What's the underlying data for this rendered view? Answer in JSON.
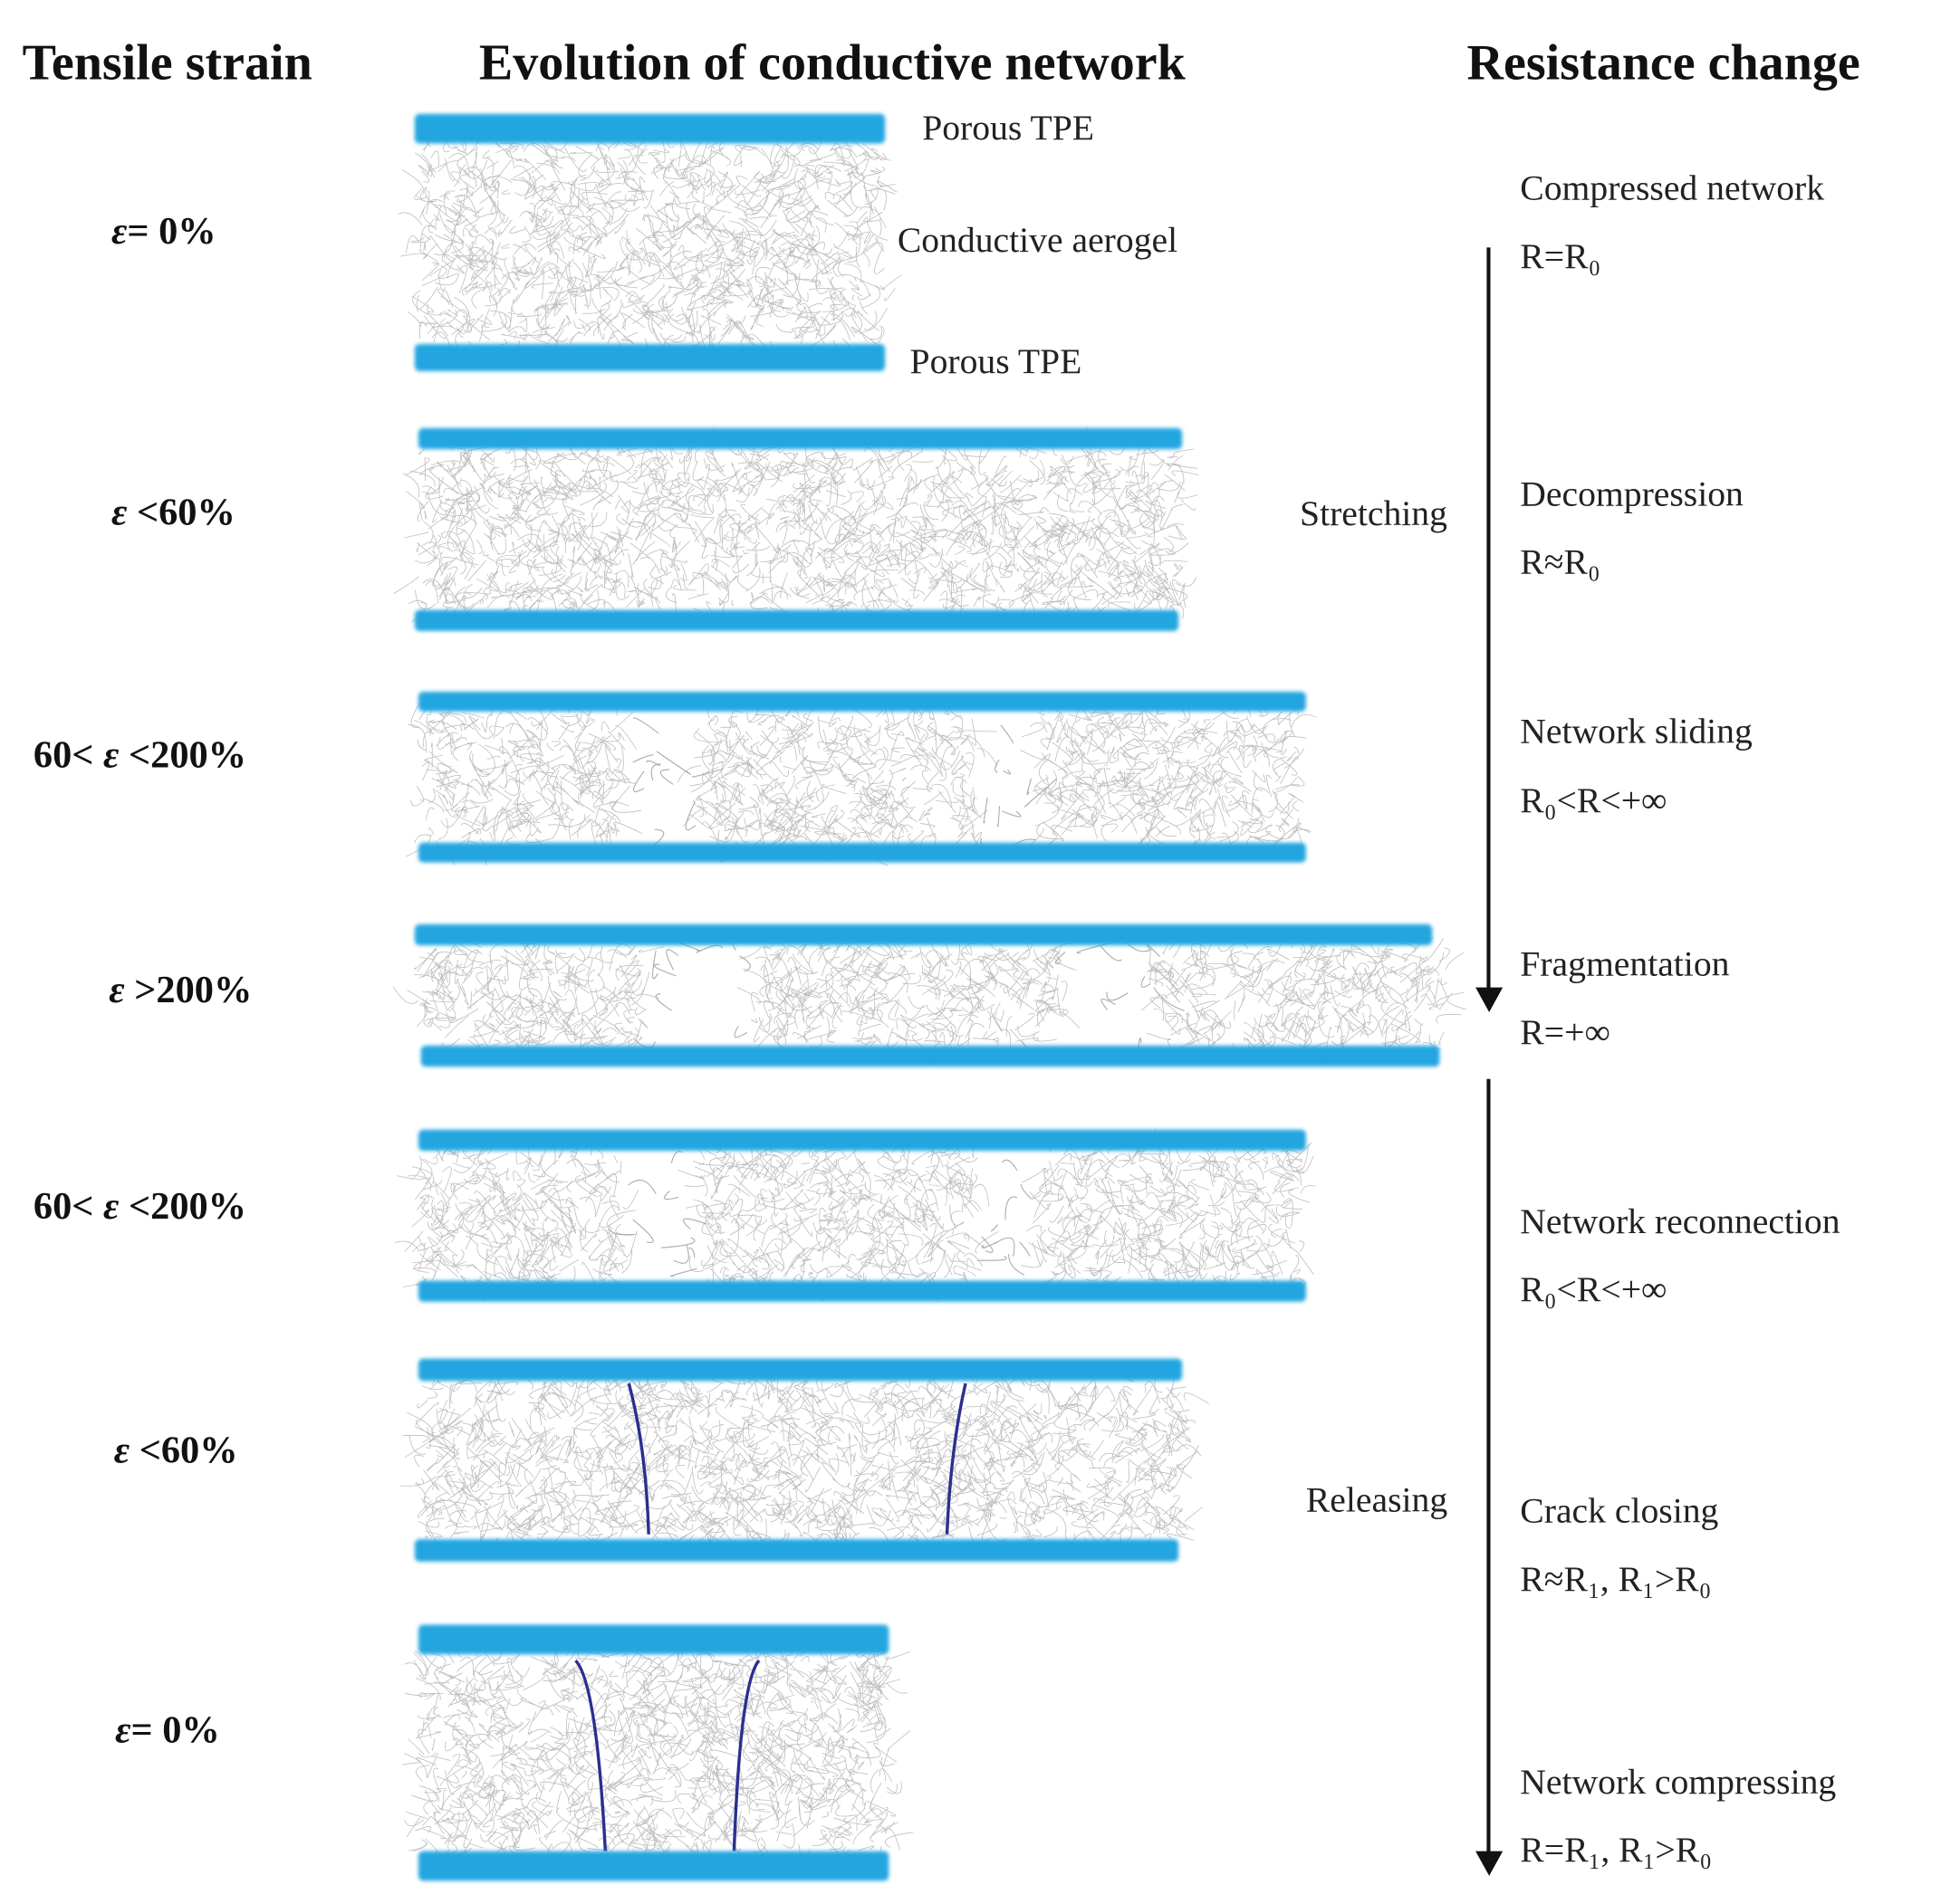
{
  "headers": {
    "strain": "Tensile strain",
    "network": "Evolution of conductive network",
    "resistance": "Resistance change"
  },
  "labels": {
    "porous_tpe_top": "Porous TPE",
    "conductive_aerogel": "Conductive aerogel",
    "porous_tpe_bottom": "Porous TPE"
  },
  "strains": [
    {
      "prefix": "",
      "symbol": "ε",
      "suffix": "= 0%"
    },
    {
      "prefix": "",
      "symbol": "ε",
      "suffix": " <60%"
    },
    {
      "prefix": "60< ",
      "symbol": "ε",
      "suffix": " <200%"
    },
    {
      "prefix": "",
      "symbol": "ε",
      "suffix": " >200%"
    },
    {
      "prefix": "60< ",
      "symbol": "ε",
      "suffix": " <200%"
    },
    {
      "prefix": "",
      "symbol": "ε",
      "suffix": " <60%"
    },
    {
      "prefix": "",
      "symbol": "ε",
      "suffix": "= 0%"
    }
  ],
  "phases": {
    "stretching": "Stretching",
    "releasing": "Releasing"
  },
  "resistance": [
    {
      "state": "Compressed network",
      "value": "R=R₀"
    },
    {
      "state": "Decompression",
      "value": "R≈R₀"
    },
    {
      "state": "Network sliding",
      "value": "R₀<R<+∞"
    },
    {
      "state": "Fragmentation",
      "value": "R=+∞"
    },
    {
      "state": "Network reconnection",
      "value": "R₀<R<+∞"
    },
    {
      "state": "Crack closing",
      "value": "R≈R₁,   R₁>R₀"
    },
    {
      "state": "Network compressing",
      "value": "R=R₁, R₁>R₀"
    }
  ],
  "colors": {
    "tpe": "#23a6e0",
    "aerogel": "#8a8a8a",
    "crack": "#2a2f8f",
    "arrow": "#111111"
  }
}
